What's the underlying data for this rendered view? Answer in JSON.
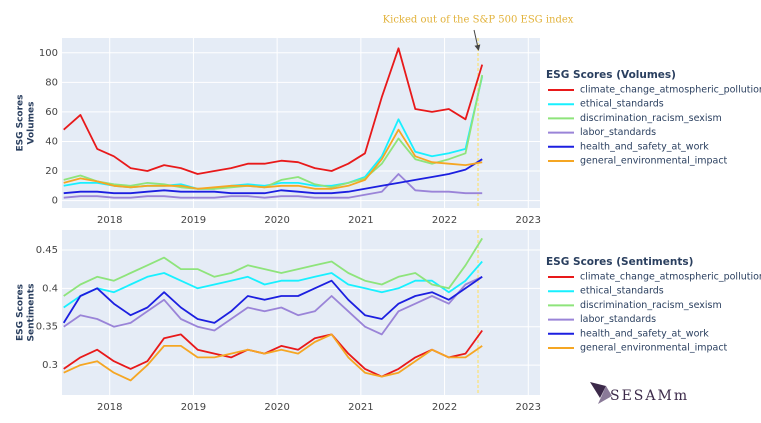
{
  "chart_data": [
    {
      "type": "line",
      "ylabel": [
        "ESG Scores",
        "Volumes"
      ],
      "legend_title": "ESG Scores (Volumes)",
      "annotation": {
        "text": "Kicked out of the S&P 500 ESG index",
        "x": 2022.4
      },
      "x": [
        2017.45,
        2017.65,
        2017.85,
        2018.05,
        2018.25,
        2018.45,
        2018.65,
        2018.85,
        2019.05,
        2019.25,
        2019.45,
        2019.65,
        2019.85,
        2020.05,
        2020.25,
        2020.45,
        2020.65,
        2020.85,
        2021.05,
        2021.25,
        2021.45,
        2021.65,
        2021.85,
        2022.05,
        2022.25,
        2022.45
      ],
      "xlim": [
        2017.43,
        2023.14
      ],
      "xticks": [
        2018,
        2019,
        2020,
        2021,
        2022,
        2023
      ],
      "ylim": [
        -5,
        110
      ],
      "yticks": [
        0,
        20,
        40,
        60,
        80,
        100
      ],
      "grid": true,
      "series": [
        {
          "name": "climate_change_atmospheric_pollution",
          "color": "#e8191a",
          "values": [
            48,
            58,
            35,
            30,
            22,
            20,
            24,
            22,
            18,
            20,
            22,
            25,
            25,
            27,
            26,
            22,
            20,
            25,
            32,
            70,
            103,
            62,
            60,
            62,
            55,
            92
          ]
        },
        {
          "name": "ethical_standards",
          "color": "#18f0ff",
          "values": [
            10,
            12,
            12,
            10,
            9,
            10,
            10,
            11,
            8,
            8,
            10,
            11,
            10,
            12,
            12,
            10,
            10,
            12,
            16,
            30,
            55,
            33,
            30,
            32,
            35,
            84
          ]
        },
        {
          "name": "discrimination_racism_sexism",
          "color": "#8ee47b",
          "values": [
            14,
            17,
            13,
            11,
            10,
            12,
            11,
            9,
            8,
            8,
            9,
            10,
            9,
            14,
            16,
            11,
            9,
            12,
            15,
            25,
            42,
            28,
            25,
            28,
            32,
            85
          ]
        },
        {
          "name": "labor_standards",
          "color": "#9a84d8",
          "values": [
            2,
            3,
            3,
            2,
            2,
            3,
            3,
            2,
            2,
            2,
            3,
            3,
            2,
            3,
            3,
            2,
            2,
            2,
            4,
            6,
            18,
            7,
            6,
            6,
            5,
            5
          ]
        },
        {
          "name": "health_and_safety_at_work",
          "color": "#1c1fe0",
          "values": [
            5,
            6,
            6,
            5,
            5,
            6,
            7,
            6,
            6,
            6,
            5,
            5,
            5,
            7,
            6,
            5,
            5,
            6,
            8,
            10,
            12,
            14,
            16,
            18,
            21,
            28
          ]
        },
        {
          "name": "general_environmental_impact",
          "color": "#f5a623",
          "values": [
            12,
            15,
            13,
            10,
            9,
            10,
            10,
            10,
            8,
            9,
            10,
            10,
            9,
            10,
            10,
            8,
            8,
            10,
            14,
            28,
            48,
            30,
            26,
            25,
            24,
            26
          ]
        }
      ]
    },
    {
      "type": "line",
      "ylabel": [
        "ESG Scores",
        "Sentiments"
      ],
      "legend_title": "ESG Scores (Sentiments)",
      "x": [
        2017.45,
        2017.65,
        2017.85,
        2018.05,
        2018.25,
        2018.45,
        2018.65,
        2018.85,
        2019.05,
        2019.25,
        2019.45,
        2019.65,
        2019.85,
        2020.05,
        2020.25,
        2020.45,
        2020.65,
        2020.85,
        2021.05,
        2021.25,
        2021.45,
        2021.65,
        2021.85,
        2022.05,
        2022.25,
        2022.45
      ],
      "xlim": [
        2017.43,
        2023.14
      ],
      "xticks": [
        2018,
        2019,
        2020,
        2021,
        2022,
        2023
      ],
      "ylim": [
        0.261,
        0.476
      ],
      "yticks": [
        0.3,
        0.35,
        0.4,
        0.45
      ],
      "grid": true,
      "series": [
        {
          "name": "climate_change_atmospheric_pollution",
          "color": "#e8191a",
          "values": [
            0.295,
            0.31,
            0.32,
            0.305,
            0.295,
            0.305,
            0.335,
            0.34,
            0.32,
            0.315,
            0.31,
            0.32,
            0.315,
            0.325,
            0.32,
            0.335,
            0.34,
            0.315,
            0.295,
            0.285,
            0.295,
            0.31,
            0.32,
            0.31,
            0.315,
            0.345
          ]
        },
        {
          "name": "ethical_standards",
          "color": "#18f0ff",
          "values": [
            0.375,
            0.39,
            0.4,
            0.395,
            0.405,
            0.415,
            0.42,
            0.41,
            0.4,
            0.405,
            0.41,
            0.415,
            0.405,
            0.41,
            0.41,
            0.415,
            0.42,
            0.405,
            0.4,
            0.395,
            0.4,
            0.41,
            0.41,
            0.395,
            0.41,
            0.435
          ]
        },
        {
          "name": "discrimination_racism_sexism",
          "color": "#8ee47b",
          "values": [
            0.39,
            0.405,
            0.415,
            0.41,
            0.42,
            0.43,
            0.44,
            0.425,
            0.425,
            0.415,
            0.42,
            0.43,
            0.425,
            0.42,
            0.425,
            0.43,
            0.435,
            0.42,
            0.41,
            0.405,
            0.415,
            0.42,
            0.405,
            0.4,
            0.43,
            0.465
          ]
        },
        {
          "name": "labor_standards",
          "color": "#9a84d8",
          "values": [
            0.35,
            0.365,
            0.36,
            0.35,
            0.355,
            0.37,
            0.385,
            0.36,
            0.35,
            0.345,
            0.36,
            0.375,
            0.37,
            0.375,
            0.365,
            0.37,
            0.39,
            0.37,
            0.35,
            0.34,
            0.37,
            0.38,
            0.39,
            0.38,
            0.405,
            0.415
          ]
        },
        {
          "name": "health_and_safety_at_work",
          "color": "#1c1fe0",
          "values": [
            0.355,
            0.39,
            0.4,
            0.38,
            0.365,
            0.375,
            0.395,
            0.375,
            0.36,
            0.355,
            0.37,
            0.39,
            0.385,
            0.39,
            0.39,
            0.4,
            0.41,
            0.385,
            0.365,
            0.36,
            0.38,
            0.39,
            0.395,
            0.385,
            0.4,
            0.415
          ]
        },
        {
          "name": "general_environmental_impact",
          "color": "#f5a623",
          "values": [
            0.29,
            0.3,
            0.305,
            0.29,
            0.28,
            0.3,
            0.325,
            0.325,
            0.31,
            0.31,
            0.315,
            0.32,
            0.315,
            0.32,
            0.315,
            0.33,
            0.34,
            0.31,
            0.29,
            0.285,
            0.29,
            0.305,
            0.32,
            0.31,
            0.31,
            0.325
          ]
        }
      ]
    }
  ],
  "logo": "SESAMm"
}
